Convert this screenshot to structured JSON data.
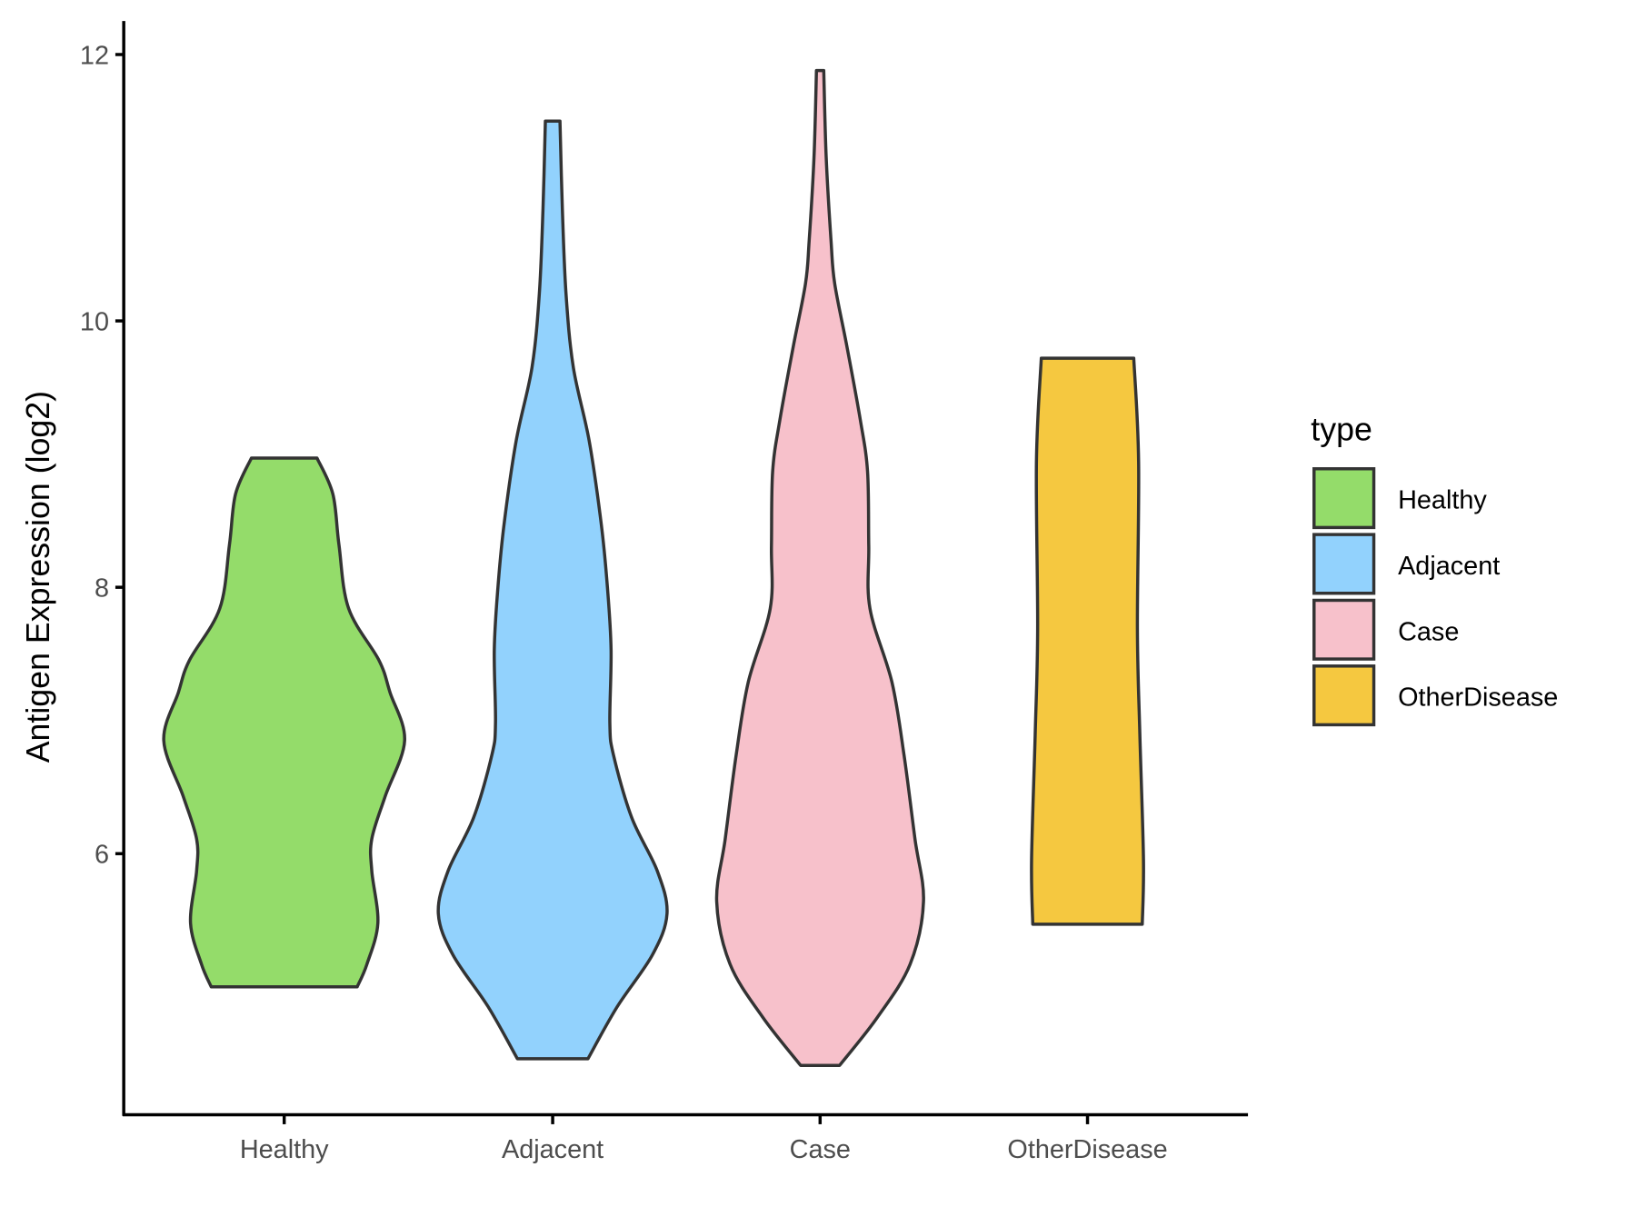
{
  "chart_data": {
    "type": "violin",
    "title": "",
    "xlabel": "",
    "ylabel": "Antigen Expression (log2)",
    "ylim": [
      4.1,
      12.25
    ],
    "yticks": [
      6,
      8,
      10,
      12
    ],
    "categories": [
      "Healthy",
      "Adjacent",
      "Case",
      "OtherDisease"
    ],
    "legend": {
      "title": "type",
      "position": "right",
      "entries": [
        "Healthy",
        "Adjacent",
        "Case",
        "OtherDisease"
      ]
    },
    "colors": {
      "Healthy": "#94DC6A",
      "Adjacent": "#92D2FD",
      "Case": "#F7C1CB",
      "OtherDisease": "#F5C840",
      "outline": "#333333"
    },
    "series": [
      {
        "name": "Healthy",
        "min": 5.0,
        "max": 8.97,
        "profile": [
          [
            8.97,
            0.27
          ],
          [
            8.7,
            0.4
          ],
          [
            8.32,
            0.45
          ],
          [
            7.84,
            0.53
          ],
          [
            7.45,
            0.78
          ],
          [
            7.21,
            0.87
          ],
          [
            6.85,
            0.99
          ],
          [
            6.43,
            0.83
          ],
          [
            6.11,
            0.72
          ],
          [
            5.87,
            0.72
          ],
          [
            5.48,
            0.77
          ],
          [
            5.17,
            0.68
          ],
          [
            5.0,
            0.6
          ]
        ]
      },
      {
        "name": "Adjacent",
        "min": 4.46,
        "max": 11.5,
        "profile": [
          [
            11.5,
            0.06
          ],
          [
            10.83,
            0.08
          ],
          [
            10.2,
            0.11
          ],
          [
            9.65,
            0.17
          ],
          [
            9.1,
            0.3
          ],
          [
            8.47,
            0.4
          ],
          [
            8.0,
            0.45
          ],
          [
            7.53,
            0.48
          ],
          [
            6.98,
            0.47
          ],
          [
            6.74,
            0.5
          ],
          [
            6.27,
            0.65
          ],
          [
            5.87,
            0.86
          ],
          [
            5.55,
            0.94
          ],
          [
            5.24,
            0.82
          ],
          [
            4.85,
            0.53
          ],
          [
            4.46,
            0.29
          ]
        ]
      },
      {
        "name": "Case",
        "min": 4.41,
        "max": 11.88,
        "profile": [
          [
            11.88,
            0.03
          ],
          [
            11.23,
            0.05
          ],
          [
            10.6,
            0.09
          ],
          [
            10.28,
            0.12
          ],
          [
            9.81,
            0.22
          ],
          [
            9.26,
            0.33
          ],
          [
            8.87,
            0.39
          ],
          [
            8.31,
            0.4
          ],
          [
            7.84,
            0.41
          ],
          [
            7.29,
            0.59
          ],
          [
            6.74,
            0.69
          ],
          [
            6.11,
            0.78
          ],
          [
            5.64,
            0.85
          ],
          [
            5.17,
            0.74
          ],
          [
            4.77,
            0.47
          ],
          [
            4.41,
            0.16
          ]
        ]
      },
      {
        "name": "OtherDisease",
        "min": 5.47,
        "max": 9.72,
        "profile": [
          [
            9.72,
            0.38
          ],
          [
            8.94,
            0.42
          ],
          [
            7.69,
            0.41
          ],
          [
            6.9,
            0.43
          ],
          [
            5.95,
            0.46
          ],
          [
            5.47,
            0.45
          ]
        ]
      }
    ]
  }
}
